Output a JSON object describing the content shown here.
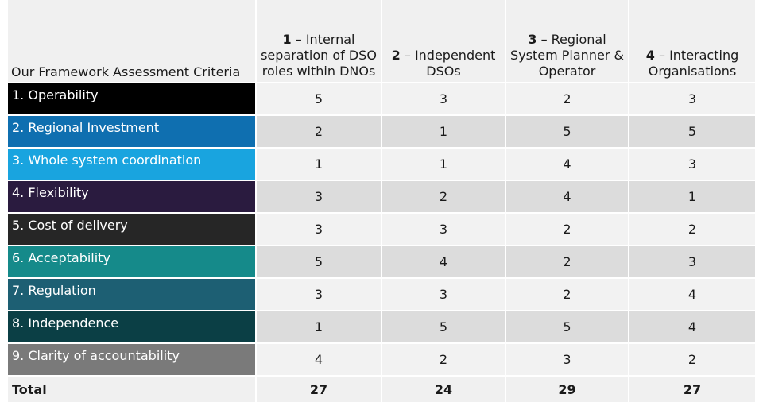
{
  "header": {
    "criteria_label": "Our Framework Assessment Criteria",
    "options": [
      {
        "num": "1",
        "text": "– Internal separation of DSO roles within DNOs"
      },
      {
        "num": "2",
        "text": "– Independent DSOs"
      },
      {
        "num": "3",
        "text": "– Regional System Planner & Operator"
      },
      {
        "num": "4",
        "text": "– Interacting Organisations"
      }
    ]
  },
  "rows": [
    {
      "label": "1. Operability",
      "color": "#000000",
      "values": [
        "5",
        "3",
        "2",
        "3"
      ]
    },
    {
      "label": "2. Regional Investment",
      "color": "#0f6fb0",
      "values": [
        "2",
        "1",
        "5",
        "5"
      ]
    },
    {
      "label": "3. Whole system coordination",
      "color": "#19a4df",
      "values": [
        "1",
        "1",
        "4",
        "3"
      ]
    },
    {
      "label": "4. Flexibility",
      "color": "#2a1b3f",
      "values": [
        "3",
        "2",
        "4",
        "1"
      ]
    },
    {
      "label": "5. Cost of delivery",
      "color": "#262626",
      "values": [
        "3",
        "3",
        "2",
        "2"
      ]
    },
    {
      "label": "6.  Acceptability",
      "color": "#158a8a",
      "values": [
        "5",
        "4",
        "2",
        "3"
      ]
    },
    {
      "label": "7. Regulation",
      "color": "#1d5f73",
      "values": [
        "3",
        "3",
        "2",
        "4"
      ]
    },
    {
      "label": "8.  Independence",
      "color": "#0b3f45",
      "values": [
        "1",
        "5",
        "5",
        "4"
      ]
    },
    {
      "label": "9. Clarity of accountability",
      "color": "#7a7a7a",
      "values": [
        "4",
        "2",
        "3",
        "2"
      ]
    }
  ],
  "total": {
    "label": "Total",
    "values": [
      "27",
      "24",
      "29",
      "27"
    ]
  }
}
